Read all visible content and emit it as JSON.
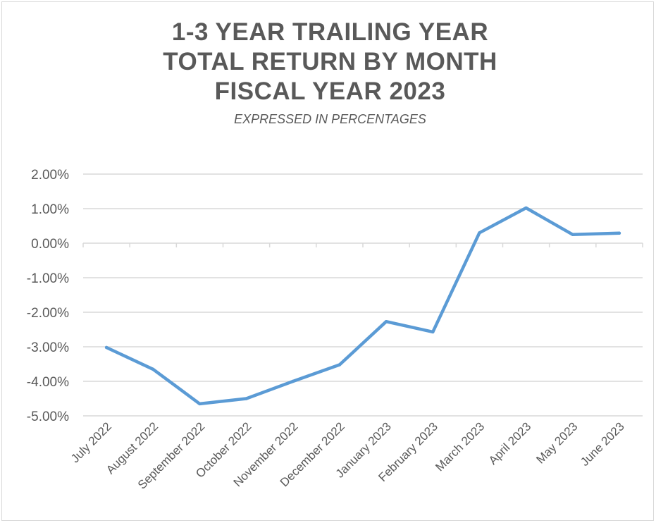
{
  "chart_data": {
    "type": "line",
    "title_lines": [
      "1-3 YEAR TRAILING YEAR",
      "TOTAL RETURN BY MONTH",
      "FISCAL YEAR 2023"
    ],
    "subtitle": "EXPRESSED IN PERCENTAGES",
    "categories": [
      "July 2022",
      "August 2022",
      "September 2022",
      "October 2022",
      "November 2022",
      "December 2022",
      "January 2023",
      "February 2023",
      "March 2023",
      "April 2023",
      "May 2023",
      "June 2023"
    ],
    "values": [
      -3.02,
      -3.65,
      -4.65,
      -4.5,
      -4.0,
      -3.52,
      -2.27,
      -2.57,
      0.3,
      1.02,
      0.25,
      0.29
    ],
    "ylim": [
      -5,
      2
    ],
    "yticks": [
      2,
      1,
      0,
      -1,
      -2,
      -3,
      -4,
      -5
    ],
    "ytick_labels": [
      "2.00%",
      "1.00%",
      "0.00%",
      "-1.00%",
      "-2.00%",
      "-3.00%",
      "-4.00%",
      "-5.00%"
    ],
    "grid": true,
    "line_color": "#5b9bd5",
    "grid_color": "#d9d9d9",
    "text_color": "#595959"
  }
}
